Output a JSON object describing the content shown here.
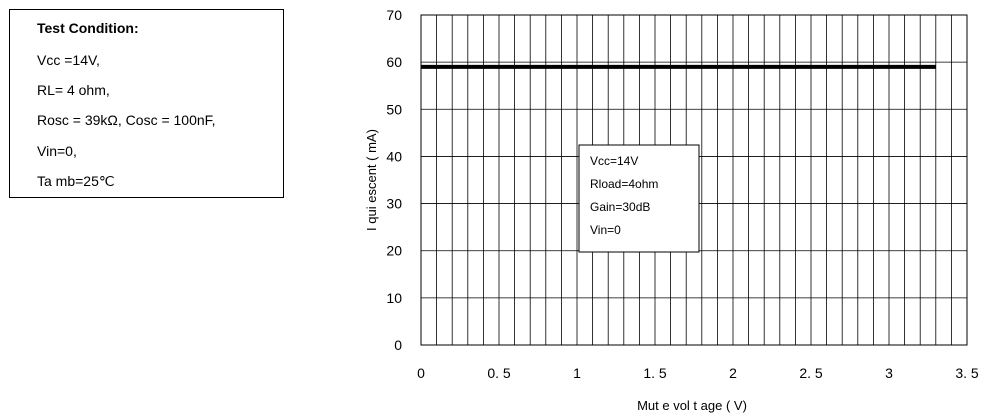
{
  "test_condition": {
    "title": "Test Condition:",
    "lines": [
      "Vcc =14V,",
      "RL= 4 ohm,",
      "Rosc = 39kΩ, Cosc = 100nF,",
      "Vin=0,",
      "Ta mb=25℃"
    ]
  },
  "chart_data": {
    "type": "line",
    "title": "",
    "xlabel": "Mut e  vol t age  ( V)",
    "ylabel": "I qui escent  ( mA)",
    "xlim": [
      0,
      3.5
    ],
    "ylim": [
      0,
      70
    ],
    "x_ticks": [
      0,
      0.5,
      1,
      1.5,
      2,
      2.5,
      3,
      3.5
    ],
    "x_tick_labels": [
      "0",
      "0. 5",
      "1",
      "1. 5",
      "2",
      "2. 5",
      "3",
      "3. 5"
    ],
    "y_ticks": [
      0,
      10,
      20,
      30,
      40,
      50,
      60,
      70
    ],
    "y_tick_labels": [
      "0",
      "10",
      "20",
      "30",
      "40",
      "50",
      "60",
      "70"
    ],
    "grid": true,
    "series": [
      {
        "x": [
          0,
          0.5,
          1,
          1.5,
          2,
          2.5,
          3,
          3.3
        ],
        "y": [
          59,
          59,
          59,
          59,
          59,
          59,
          59,
          59
        ]
      }
    ],
    "annotation_lines": [
      "Vcc=14V",
      "Rload=4ohm",
      "Gain=30dB",
      "Vin=0"
    ],
    "colors": {
      "series": "#000000",
      "grid": "#000000"
    }
  }
}
